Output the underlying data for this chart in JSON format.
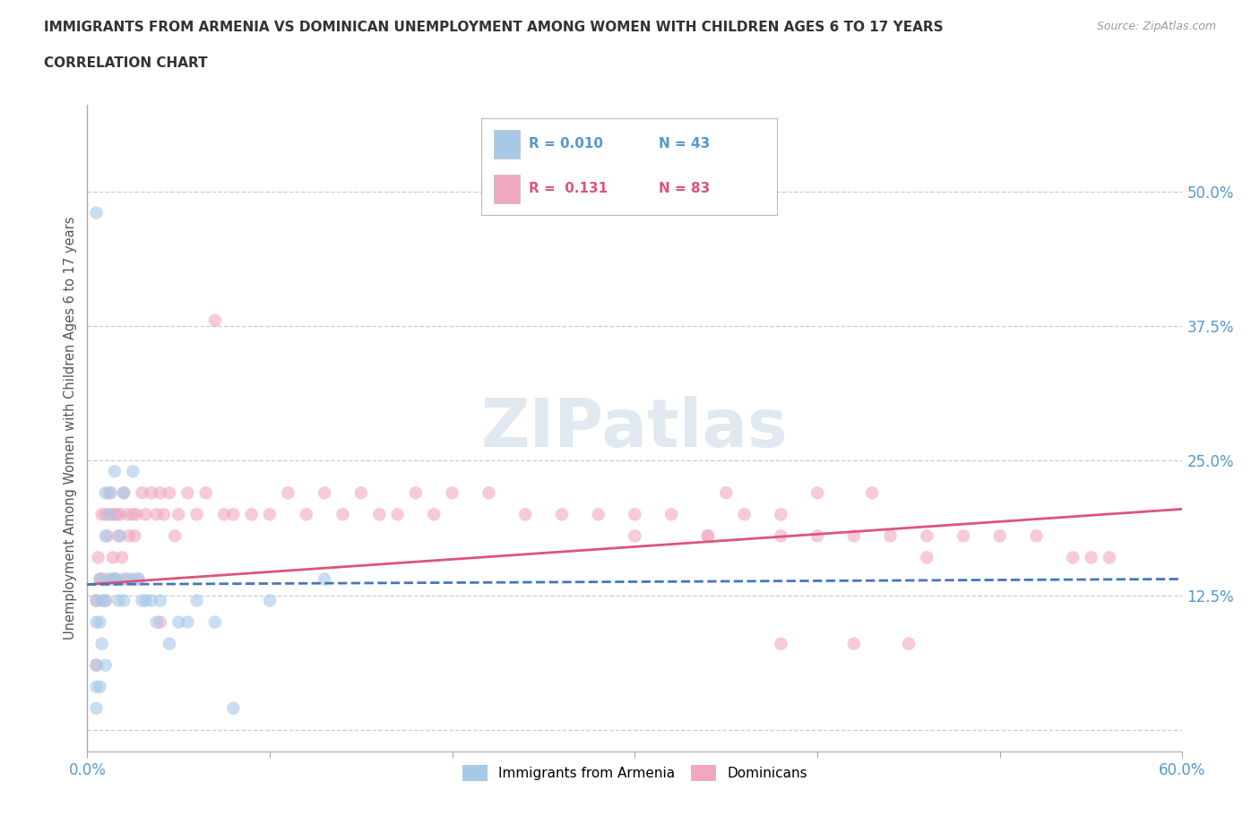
{
  "title_line1": "IMMIGRANTS FROM ARMENIA VS DOMINICAN UNEMPLOYMENT AMONG WOMEN WITH CHILDREN AGES 6 TO 17 YEARS",
  "title_line2": "CORRELATION CHART",
  "source": "Source: ZipAtlas.com",
  "ylabel": "Unemployment Among Women with Children Ages 6 to 17 years",
  "xlim": [
    0.0,
    0.6
  ],
  "ylim": [
    -0.02,
    0.58
  ],
  "xticks": [
    0.0,
    0.1,
    0.2,
    0.3,
    0.4,
    0.5,
    0.6
  ],
  "xticklabels": [
    "0.0%",
    "",
    "",
    "",
    "",
    "",
    "60.0%"
  ],
  "yticks": [
    0.0,
    0.125,
    0.25,
    0.375,
    0.5
  ],
  "yticklabels": [
    "",
    "12.5%",
    "25.0%",
    "37.5%",
    "50.0%"
  ],
  "grid_color": "#cccccc",
  "background_color": "#ffffff",
  "color_armenia": "#a8c8e8",
  "color_dominican": "#f0a8c0",
  "color_armenia_line": "#4477bb",
  "color_dominican_line": "#dd5577",
  "scatter_size": 110,
  "scatter_alpha": 0.6,
  "armenia_x": [
    0.005,
    0.005,
    0.005,
    0.005,
    0.005,
    0.005,
    0.007,
    0.007,
    0.007,
    0.008,
    0.008,
    0.01,
    0.01,
    0.01,
    0.01,
    0.012,
    0.012,
    0.013,
    0.014,
    0.015,
    0.015,
    0.016,
    0.017,
    0.018,
    0.02,
    0.02,
    0.022,
    0.025,
    0.025,
    0.028,
    0.03,
    0.032,
    0.035,
    0.038,
    0.04,
    0.045,
    0.05,
    0.055,
    0.06,
    0.07,
    0.08,
    0.1,
    0.13
  ],
  "armenia_y": [
    0.48,
    0.12,
    0.1,
    0.06,
    0.04,
    0.02,
    0.14,
    0.1,
    0.04,
    0.12,
    0.08,
    0.22,
    0.18,
    0.12,
    0.06,
    0.2,
    0.14,
    0.22,
    0.14,
    0.24,
    0.14,
    0.14,
    0.12,
    0.18,
    0.22,
    0.12,
    0.14,
    0.24,
    0.14,
    0.14,
    0.12,
    0.12,
    0.12,
    0.1,
    0.12,
    0.08,
    0.1,
    0.1,
    0.12,
    0.1,
    0.02,
    0.12,
    0.14
  ],
  "dominican_x": [
    0.005,
    0.005,
    0.006,
    0.007,
    0.008,
    0.009,
    0.01,
    0.01,
    0.011,
    0.012,
    0.013,
    0.014,
    0.015,
    0.015,
    0.016,
    0.017,
    0.018,
    0.019,
    0.02,
    0.02,
    0.022,
    0.023,
    0.025,
    0.026,
    0.027,
    0.028,
    0.03,
    0.032,
    0.035,
    0.038,
    0.04,
    0.042,
    0.045,
    0.048,
    0.05,
    0.055,
    0.06,
    0.065,
    0.07,
    0.075,
    0.08,
    0.09,
    0.1,
    0.11,
    0.12,
    0.13,
    0.14,
    0.15,
    0.16,
    0.17,
    0.18,
    0.19,
    0.2,
    0.22,
    0.24,
    0.26,
    0.28,
    0.3,
    0.32,
    0.34,
    0.36,
    0.38,
    0.4,
    0.42,
    0.44,
    0.46,
    0.48,
    0.5,
    0.52,
    0.54,
    0.55,
    0.56,
    0.04,
    0.3,
    0.34,
    0.35,
    0.38,
    0.4,
    0.43,
    0.46,
    0.38,
    0.42,
    0.45
  ],
  "dominican_y": [
    0.12,
    0.06,
    0.16,
    0.14,
    0.2,
    0.14,
    0.2,
    0.12,
    0.18,
    0.22,
    0.2,
    0.16,
    0.2,
    0.14,
    0.2,
    0.18,
    0.2,
    0.16,
    0.22,
    0.14,
    0.2,
    0.18,
    0.2,
    0.18,
    0.2,
    0.14,
    0.22,
    0.2,
    0.22,
    0.2,
    0.22,
    0.2,
    0.22,
    0.18,
    0.2,
    0.22,
    0.2,
    0.22,
    0.38,
    0.2,
    0.2,
    0.2,
    0.2,
    0.22,
    0.2,
    0.22,
    0.2,
    0.22,
    0.2,
    0.2,
    0.22,
    0.2,
    0.22,
    0.22,
    0.2,
    0.2,
    0.2,
    0.2,
    0.2,
    0.18,
    0.2,
    0.18,
    0.18,
    0.18,
    0.18,
    0.16,
    0.18,
    0.18,
    0.18,
    0.16,
    0.16,
    0.16,
    0.1,
    0.18,
    0.18,
    0.22,
    0.2,
    0.22,
    0.22,
    0.18,
    0.08,
    0.08,
    0.08
  ],
  "armenia_line_x0": 0.0,
  "armenia_line_x1": 0.6,
  "armenia_line_y0": 0.135,
  "armenia_line_y1": 0.14,
  "dominican_line_x0": 0.0,
  "dominican_line_x1": 0.6,
  "dominican_line_y0": 0.135,
  "dominican_line_y1": 0.205
}
